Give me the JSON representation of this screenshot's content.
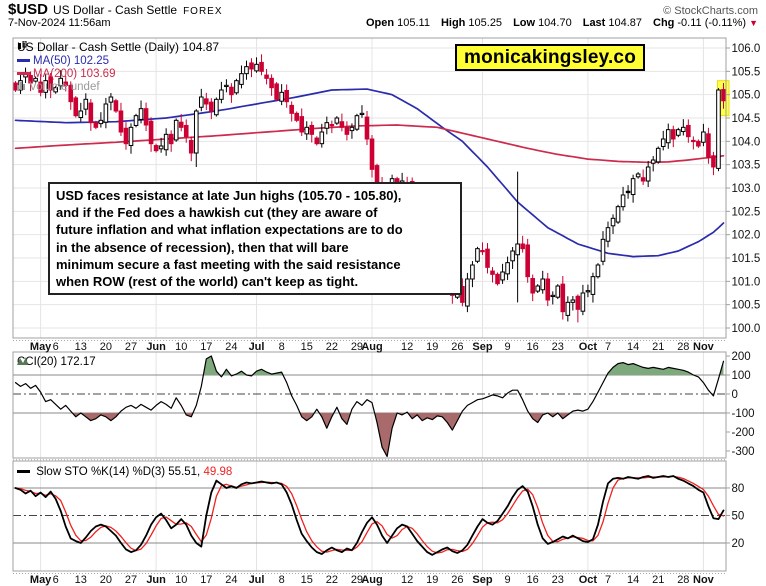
{
  "header": {
    "symbol": "$USD",
    "name": "US Dollar - Cash Settle",
    "exchange": "FOREX",
    "datetime": "7-Nov-2024 11:56am",
    "copyright": "© StockCharts.com",
    "quote": {
      "open_label": "Open",
      "open": "105.11",
      "high_label": "High",
      "high": "105.25",
      "low_label": "Low",
      "low": "104.70",
      "last_label": "Last",
      "last": "104.87",
      "chg_label": "Chg",
      "chg": "-0.11 (-0.11%)"
    }
  },
  "watermark": {
    "text": "monicakingsley.co"
  },
  "annotation": {
    "lines": [
      "USD faces resistance at late Jun highs (105.70 - 105.80),",
      "and if the Fed does a hawkish cut (they are aware of",
      "future inflation and what inflation expectations are to do",
      "in the absence of recession), then that will bare",
      "minimum secure a fast meeting with the said resistance",
      "when ROW (rest of the world) can't keep as tight."
    ]
  },
  "legend": {
    "price": "US Dollar - Cash Settle (Daily) 104.87",
    "ma50": "MA(50) 102.25",
    "ma200": "MA(200) 103.69",
    "volume": "Volume undef",
    "cci": "CCI(20) 172.17",
    "sto_black": "Slow STO %K(14) %D(3) 55.51,",
    "sto_red": "49.98"
  },
  "icons": {
    "price_legend": "candlestick-icon",
    "ma_legend": "line-dash-icon",
    "volume_legend": "volume-bars-icon",
    "cci_legend": "area-zigzag-icon",
    "sto_legend": "line-dash-icon",
    "chg": "down-triangle-icon"
  },
  "colors": {
    "up": "#000000",
    "down": "#cc0033",
    "ma50": "#2b2bad",
    "ma200": "#cc2b4d",
    "cci_line": "#000000",
    "cci_fill_pos": "#7da97d",
    "cci_fill_neg": "#a86a6a",
    "sto_k": "#000000",
    "sto_d": "#ee2222",
    "grid": "#e4e4e4",
    "panel_border": "#a0a0a0",
    "threshold": "#888888",
    "centerline": "#444444",
    "highlight": "#ffff4d",
    "watermark_bg": "#ffff33",
    "axis_text": "#111111"
  },
  "chart_data": {
    "type": "candlestick",
    "title": "US Dollar - Cash Settle (Daily)",
    "ylabel": "price",
    "ylim": [
      100.0,
      106.0
    ],
    "ytick_step": 0.5,
    "grid": true,
    "x_ticks": [
      {
        "label": "May",
        "i": 5,
        "bold": true
      },
      {
        "label": "6",
        "i": 8
      },
      {
        "label": "13",
        "i": 13
      },
      {
        "label": "20",
        "i": 18
      },
      {
        "label": "27",
        "i": 23
      },
      {
        "label": "Jun",
        "i": 28,
        "bold": true
      },
      {
        "label": "10",
        "i": 33
      },
      {
        "label": "17",
        "i": 38
      },
      {
        "label": "24",
        "i": 43
      },
      {
        "label": "Jul",
        "i": 48,
        "bold": true
      },
      {
        "label": "8",
        "i": 53
      },
      {
        "label": "15",
        "i": 58
      },
      {
        "label": "22",
        "i": 63
      },
      {
        "label": "29",
        "i": 68
      },
      {
        "label": "Aug",
        "i": 71,
        "bold": true
      },
      {
        "label": "12",
        "i": 78
      },
      {
        "label": "19",
        "i": 83
      },
      {
        "label": "26",
        "i": 88
      },
      {
        "label": "Sep",
        "i": 93,
        "bold": true
      },
      {
        "label": "9",
        "i": 98
      },
      {
        "label": "16",
        "i": 103
      },
      {
        "label": "23",
        "i": 108
      },
      {
        "label": "Oct",
        "i": 114,
        "bold": true
      },
      {
        "label": "7",
        "i": 118
      },
      {
        "label": "14",
        "i": 123
      },
      {
        "label": "21",
        "i": 128
      },
      {
        "label": "28",
        "i": 133
      },
      {
        "label": "Nov",
        "i": 137,
        "bold": true
      }
    ],
    "closes": [
      105.1,
      105.3,
      105.45,
      105.25,
      105.35,
      105.05,
      105.3,
      105.1,
      105.15,
      105.35,
      105.2,
      104.85,
      104.55,
      104.65,
      104.9,
      104.4,
      104.3,
      104.45,
      104.8,
      104.95,
      104.65,
      104.2,
      103.95,
      104.3,
      104.55,
      104.7,
      104.35,
      103.95,
      103.8,
      103.9,
      104.15,
      103.95,
      104.45,
      104.3,
      104.1,
      103.75,
      104.65,
      104.95,
      104.8,
      104.65,
      104.9,
      105.1,
      105.2,
      105.0,
      105.3,
      105.45,
      105.6,
      105.55,
      105.65,
      105.5,
      105.35,
      105.15,
      104.9,
      105.05,
      104.85,
      104.6,
      104.45,
      104.2,
      104.3,
      104.15,
      103.95,
      104.2,
      104.4,
      104.35,
      104.5,
      104.3,
      104.15,
      104.3,
      104.55,
      104.6,
      104.05,
      103.4,
      103.1,
      102.7,
      102.95,
      103.2,
      103.0,
      103.15,
      103.1,
      102.6,
      102.45,
      102.55,
      102.45,
      102.1,
      101.85,
      101.7,
      101.5,
      100.7,
      100.85,
      100.55,
      101.05,
      101.35,
      101.7,
      101.65,
      101.3,
      101.15,
      100.95,
      101.2,
      101.4,
      101.65,
      101.8,
      101.7,
      101.1,
      100.75,
      100.9,
      101.05,
      100.6,
      100.7,
      100.9,
      100.35,
      100.55,
      100.6,
      100.4,
      100.75,
      100.8,
      101.1,
      101.35,
      101.9,
      102.15,
      102.35,
      102.6,
      102.85,
      102.9,
      103.2,
      103.3,
      103.15,
      103.45,
      103.6,
      103.85,
      104.05,
      104.25,
      104.05,
      104.25,
      104.3,
      104.1,
      104.0,
      103.9,
      104.2,
      103.65,
      103.45,
      105.1,
      104.87
    ],
    "wick_overrides": {
      "36": {
        "l": 103.45
      },
      "47": {
        "h": 105.78
      },
      "48": {
        "h": 105.8
      },
      "73": {
        "l": 102.5
      },
      "87": {
        "l": 100.52
      },
      "100": {
        "h": 103.35,
        "l": 100.55
      },
      "109": {
        "l": 100.18
      },
      "112": {
        "l": 100.12
      },
      "140": {
        "o": 103.42,
        "l": 103.36
      },
      "141": {
        "o": 105.11,
        "h": 105.25,
        "l": 104.7
      }
    },
    "ma50_last": 102.25,
    "ma200_last": 103.69,
    "ma50_anchors": [
      [
        0,
        104.45
      ],
      [
        10,
        104.4
      ],
      [
        20,
        104.42
      ],
      [
        30,
        104.5
      ],
      [
        40,
        104.65
      ],
      [
        48,
        104.8
      ],
      [
        56,
        104.95
      ],
      [
        63,
        105.1
      ],
      [
        70,
        105.12
      ],
      [
        75,
        105.0
      ],
      [
        80,
        104.7
      ],
      [
        85,
        104.3
      ],
      [
        89,
        104.0
      ],
      [
        94,
        103.45
      ],
      [
        100,
        102.7
      ],
      [
        106,
        102.15
      ],
      [
        112,
        101.8
      ],
      [
        118,
        101.6
      ],
      [
        123,
        101.53
      ],
      [
        128,
        101.55
      ],
      [
        132,
        101.65
      ],
      [
        136,
        101.85
      ],
      [
        139,
        102.05
      ],
      [
        141,
        102.25
      ]
    ],
    "ma200_anchors": [
      [
        0,
        103.85
      ],
      [
        10,
        103.92
      ],
      [
        20,
        103.98
      ],
      [
        30,
        104.05
      ],
      [
        40,
        104.12
      ],
      [
        50,
        104.2
      ],
      [
        60,
        104.28
      ],
      [
        68,
        104.33
      ],
      [
        76,
        104.35
      ],
      [
        84,
        104.3
      ],
      [
        90,
        104.15
      ],
      [
        96,
        104.0
      ],
      [
        102,
        103.85
      ],
      [
        108,
        103.72
      ],
      [
        114,
        103.62
      ],
      [
        120,
        103.57
      ],
      [
        126,
        103.55
      ],
      [
        130,
        103.56
      ],
      [
        134,
        103.6
      ],
      [
        138,
        103.65
      ],
      [
        141,
        103.69
      ]
    ],
    "cci": {
      "label": "CCI(20)",
      "last": 172.17,
      "ticks": [
        200,
        100,
        0,
        -100,
        -200,
        -300
      ],
      "lines": [
        100,
        -100
      ],
      "centerline": 0,
      "values": [
        60,
        40,
        55,
        30,
        45,
        10,
        -40,
        -30,
        -55,
        -80,
        -60,
        -90,
        -120,
        -100,
        -120,
        -140,
        -130,
        -110,
        -120,
        -140,
        -120,
        -90,
        -70,
        -60,
        -75,
        -55,
        -70,
        -85,
        -60,
        -40,
        -55,
        -75,
        -20,
        -60,
        -110,
        -120,
        -60,
        40,
        185,
        200,
        120,
        90,
        130,
        95,
        105,
        120,
        100,
        95,
        120,
        130,
        115,
        105,
        110,
        115,
        60,
        -10,
        -60,
        -120,
        -140,
        -120,
        -80,
        -120,
        -180,
        -120,
        -70,
        -130,
        -160,
        -80,
        -40,
        -60,
        -30,
        -45,
        -150,
        -280,
        -330,
        -180,
        -100,
        -110,
        -95,
        -130,
        -110,
        -140,
        -125,
        -135,
        -115,
        -120,
        -150,
        -190,
        -140,
        -90,
        -60,
        -45,
        -30,
        -25,
        -15,
        -5,
        -10,
        -20,
        5,
        20,
        20,
        -30,
        -90,
        -130,
        -150,
        -110,
        -100,
        -120,
        -100,
        -130,
        -110,
        -90,
        -85,
        -90,
        -80,
        -40,
        10,
        60,
        110,
        140,
        160,
        165,
        155,
        160,
        150,
        140,
        135,
        140,
        135,
        130,
        140,
        135,
        130,
        125,
        115,
        100,
        90,
        60,
        20,
        -10,
        80,
        172.17
      ]
    },
    "sto": {
      "label": "Slow STO %K(14) %D(3)",
      "k_last": 55.51,
      "d_last": 49.98,
      "ticks": [
        80,
        50,
        20
      ],
      "lines": [
        80,
        20
      ],
      "centerline": 50,
      "k": [
        80,
        78,
        74,
        77,
        71,
        75,
        70,
        76,
        68,
        55,
        38,
        25,
        22,
        20,
        26,
        33,
        38,
        40,
        38,
        33,
        28,
        20,
        13,
        10,
        12,
        18,
        28,
        40,
        48,
        52,
        45,
        36,
        40,
        46,
        40,
        28,
        20,
        16,
        50,
        75,
        88,
        84,
        80,
        82,
        80,
        84,
        86,
        85,
        86,
        87,
        86,
        85,
        86,
        84,
        75,
        62,
        45,
        30,
        22,
        15,
        10,
        8,
        12,
        15,
        12,
        10,
        14,
        12,
        20,
        32,
        42,
        48,
        40,
        28,
        20,
        28,
        36,
        40,
        38,
        30,
        22,
        16,
        10,
        7,
        10,
        13,
        15,
        11,
        9,
        12,
        18,
        28,
        38,
        46,
        42,
        40,
        44,
        52,
        60,
        70,
        78,
        82,
        76,
        60,
        40,
        25,
        19,
        21,
        24,
        27,
        25,
        28,
        25,
        22,
        21,
        24,
        40,
        65,
        85,
        90,
        91,
        90,
        92,
        91,
        90,
        92,
        93,
        91,
        92,
        93,
        92,
        93,
        90,
        88,
        85,
        82,
        78,
        75,
        60,
        47,
        46,
        55.51
      ]
    },
    "highlight": {
      "index": 141,
      "price_top": 105.3,
      "price_bottom": 104.55
    }
  }
}
